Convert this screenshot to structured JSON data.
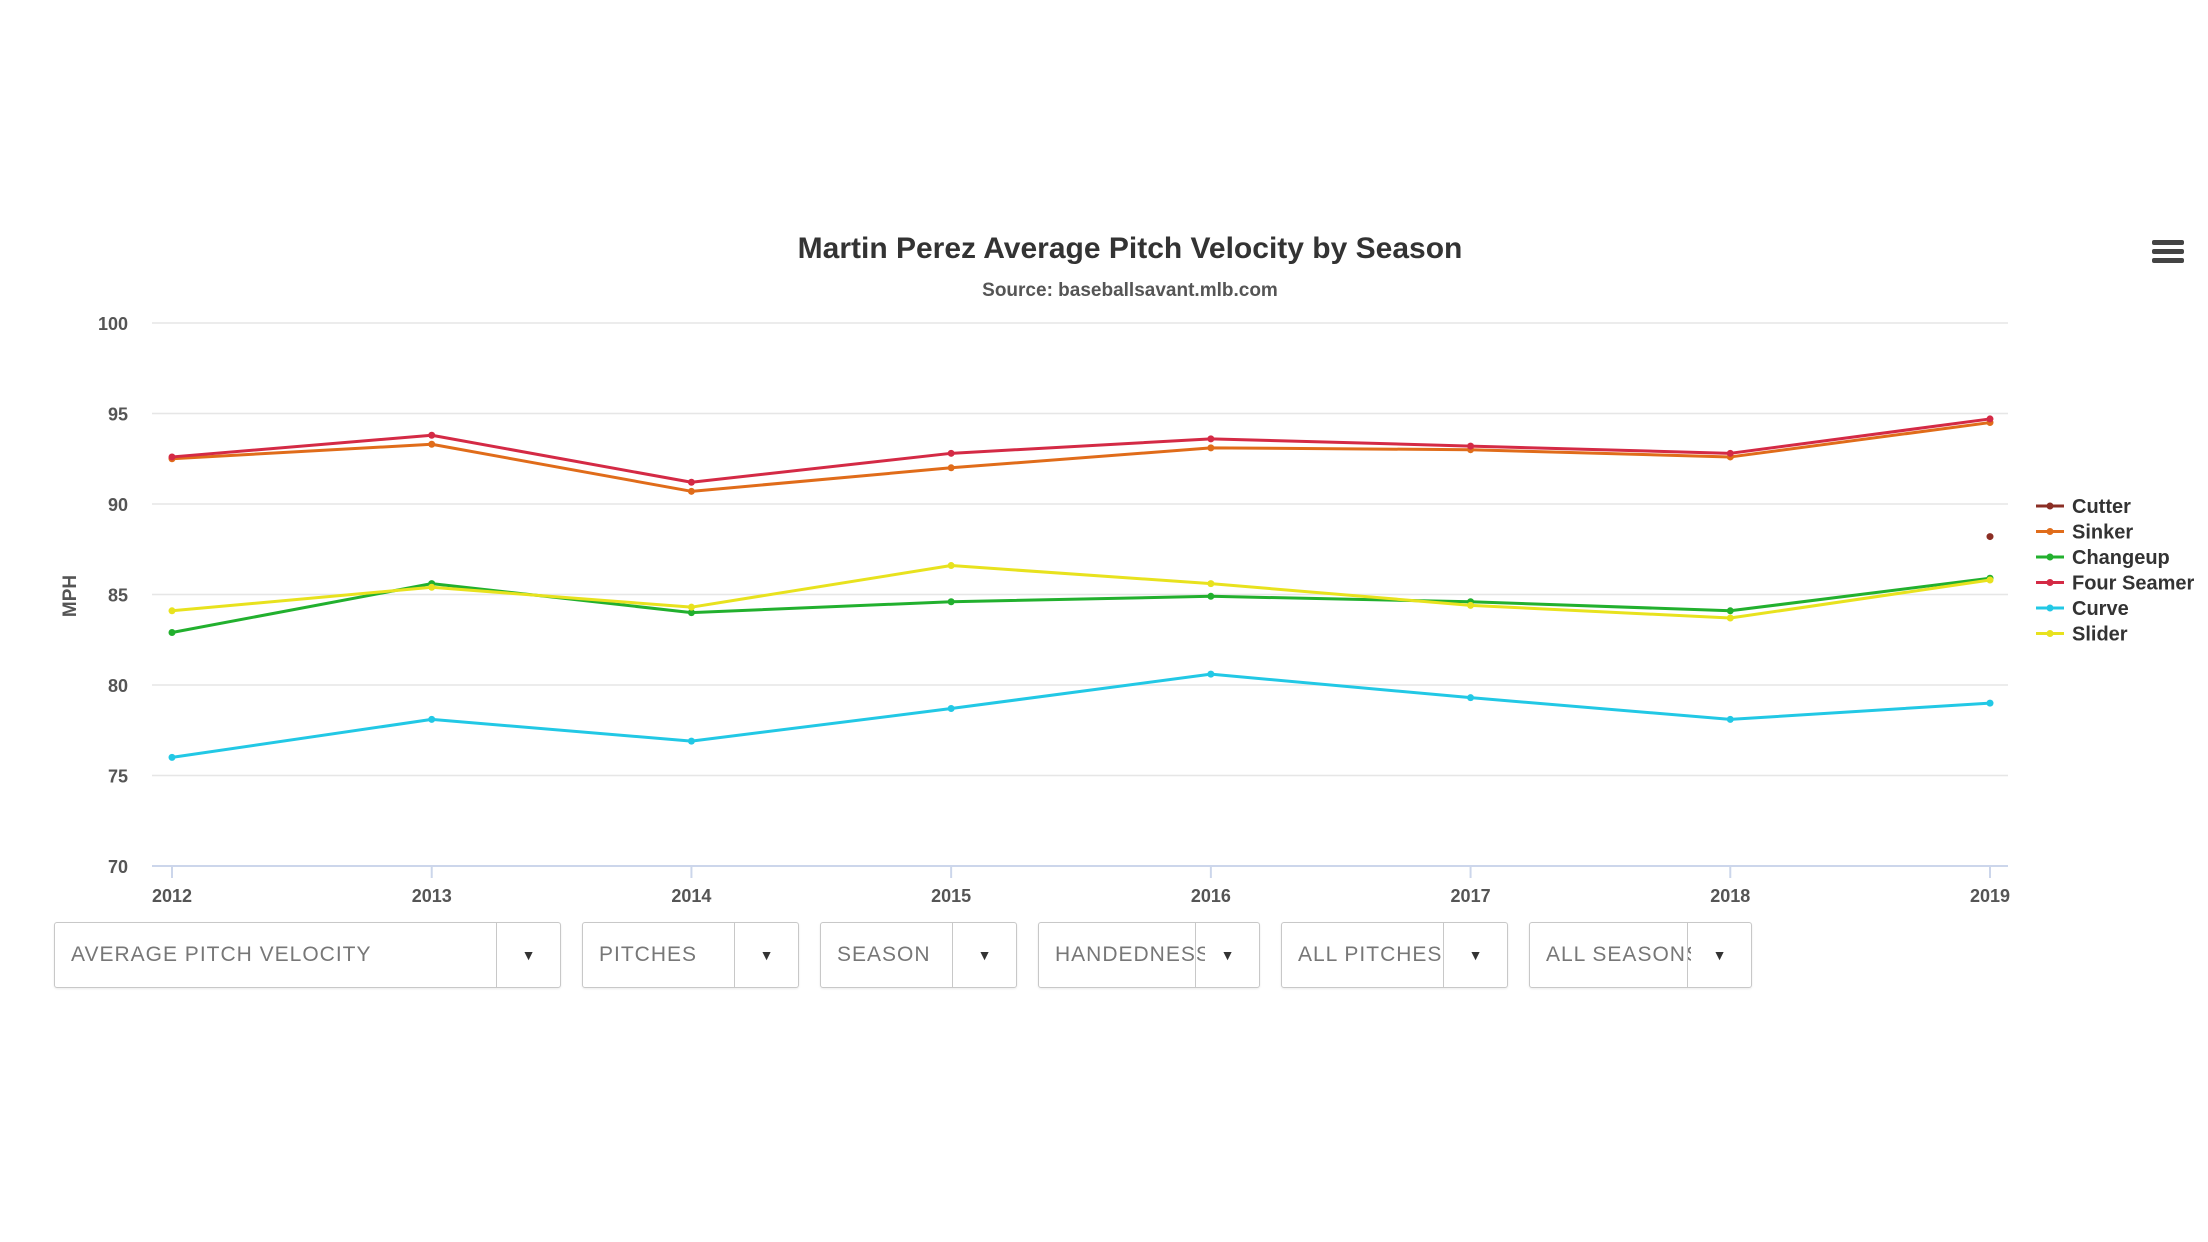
{
  "chart_data": {
    "type": "line",
    "title": "Martin Perez Average Pitch Velocity by Season",
    "subtitle": "Source: baseballsavant.mlb.com",
    "xlabel": "",
    "ylabel": "MPH",
    "x": [
      "2012",
      "2013",
      "2014",
      "2015",
      "2016",
      "2017",
      "2018",
      "2019"
    ],
    "ylim": [
      70,
      100
    ],
    "yticks": [
      70,
      75,
      80,
      85,
      90,
      95,
      100
    ],
    "grid": true,
    "legend_position": "right",
    "series": [
      {
        "name": "Cutter",
        "color": "#8b2e24",
        "values": [
          null,
          null,
          null,
          null,
          null,
          null,
          null,
          88.2
        ]
      },
      {
        "name": "Sinker",
        "color": "#e06c1a",
        "values": [
          92.5,
          93.3,
          90.7,
          92.0,
          93.1,
          93.0,
          92.6,
          94.5
        ]
      },
      {
        "name": "Changeup",
        "color": "#22b02e",
        "values": [
          82.9,
          85.6,
          84.0,
          84.6,
          84.9,
          84.6,
          84.1,
          85.9
        ]
      },
      {
        "name": "Four Seamer",
        "color": "#d42a45",
        "values": [
          92.6,
          93.8,
          91.2,
          92.8,
          93.6,
          93.2,
          92.8,
          94.7
        ]
      },
      {
        "name": "Curve",
        "color": "#22c8e5",
        "values": [
          76.0,
          78.1,
          76.9,
          78.7,
          80.6,
          79.3,
          78.1,
          79.0
        ]
      },
      {
        "name": "Slider",
        "color": "#e8e21e",
        "values": [
          84.1,
          85.4,
          84.3,
          86.6,
          85.6,
          84.4,
          83.7,
          85.8
        ]
      }
    ]
  },
  "menu": {
    "icon": "hamburger-menu-icon"
  },
  "controls": [
    {
      "label": "AVERAGE PITCH VELOCITY"
    },
    {
      "label": "PITCHES"
    },
    {
      "label": "SEASON"
    },
    {
      "label": "HANDEDNESS"
    },
    {
      "label": "ALL PITCHES"
    },
    {
      "label": "ALL SEASONS"
    }
  ],
  "dropdown_arrow": "▼"
}
